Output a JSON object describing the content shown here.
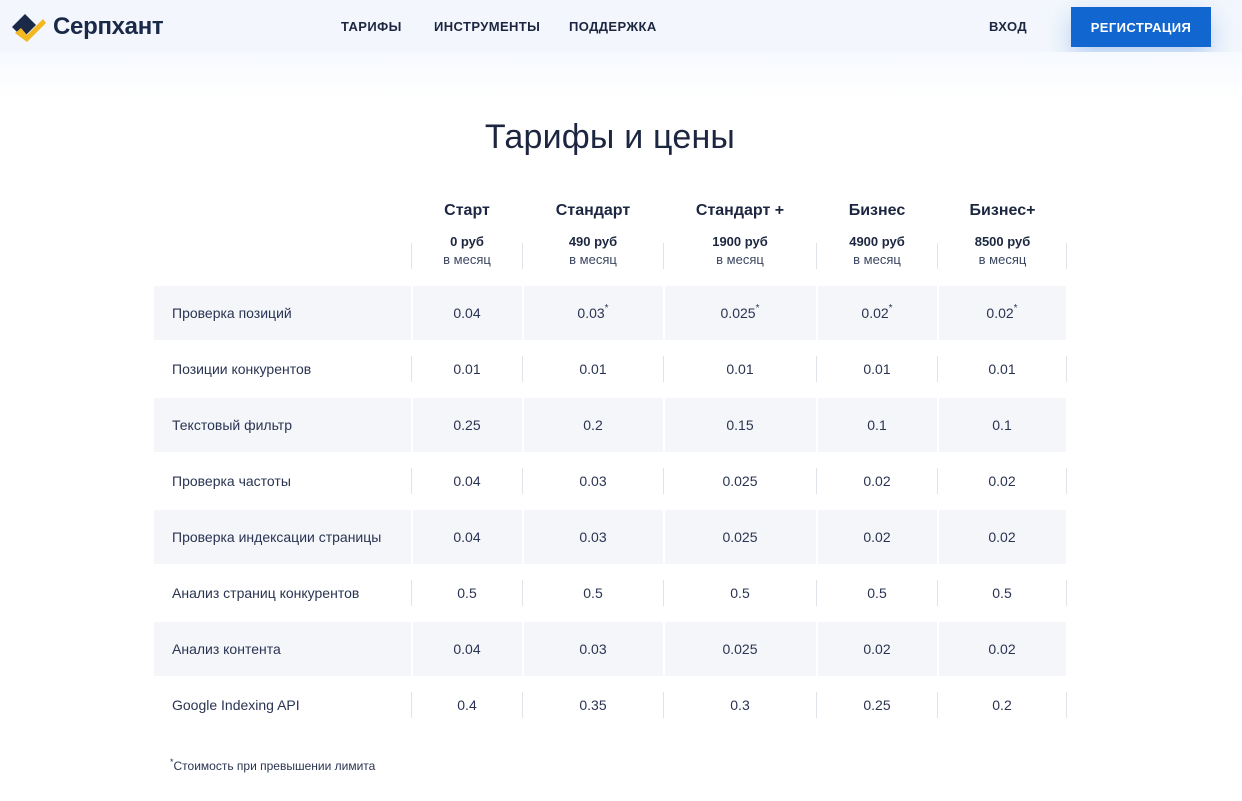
{
  "header": {
    "brand": "Серпхант",
    "nav": [
      {
        "label": "ТАРИФЫ"
      },
      {
        "label": "ИНСТРУМЕНТЫ"
      },
      {
        "label": "ПОДДЕРЖКА"
      }
    ],
    "login_label": "ВХОД",
    "register_label": "РЕГИСТРАЦИЯ",
    "colors": {
      "brand_dark": "#1a2948",
      "brand_gold": "#f2b822",
      "accent": "#1266d0"
    }
  },
  "page_title": "Тарифы и цены",
  "plans": [
    {
      "name": "Старт",
      "price": "0 руб",
      "period": "в месяц"
    },
    {
      "name": "Стандарт",
      "price": "490 руб",
      "period": "в месяц"
    },
    {
      "name": "Стандарт +",
      "price": "1900 руб",
      "period": "в месяц"
    },
    {
      "name": "Бизнес",
      "price": "4900 руб",
      "period": "в месяц"
    },
    {
      "name": "Бизнес+",
      "price": "8500 руб",
      "period": "в месяц"
    }
  ],
  "rows": [
    {
      "label": "Проверка позиций",
      "values": [
        "0.04",
        "0.03",
        "0.025",
        "0.02",
        "0.02"
      ],
      "asterisk": [
        false,
        true,
        true,
        true,
        true
      ]
    },
    {
      "label": "Позиции конкурентов",
      "values": [
        "0.01",
        "0.01",
        "0.01",
        "0.01",
        "0.01"
      ]
    },
    {
      "label": "Текстовый фильтр",
      "values": [
        "0.25",
        "0.2",
        "0.15",
        "0.1",
        "0.1"
      ]
    },
    {
      "label": "Проверка частоты",
      "values": [
        "0.04",
        "0.03",
        "0.025",
        "0.02",
        "0.02"
      ]
    },
    {
      "label": "Проверка индексации страницы",
      "values": [
        "0.04",
        "0.03",
        "0.025",
        "0.02",
        "0.02"
      ]
    },
    {
      "label": "Анализ страниц конкурентов",
      "values": [
        "0.5",
        "0.5",
        "0.5",
        "0.5",
        "0.5"
      ]
    },
    {
      "label": "Анализ контента",
      "values": [
        "0.04",
        "0.03",
        "0.025",
        "0.02",
        "0.02"
      ]
    },
    {
      "label": "Google Indexing API",
      "values": [
        "0.4",
        "0.35",
        "0.3",
        "0.25",
        "0.2"
      ]
    }
  ],
  "footnote": {
    "mark": "*",
    "text": "Стоимость при превышении лимита"
  }
}
